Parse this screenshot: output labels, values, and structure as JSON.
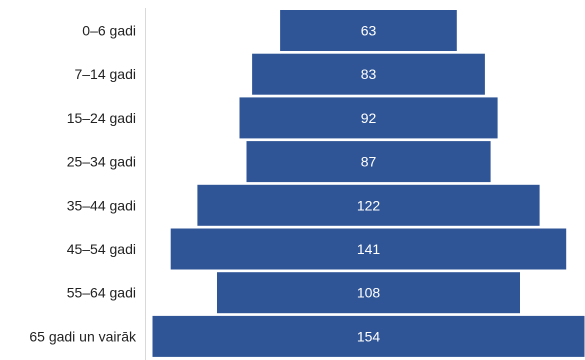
{
  "chart_data": {
    "type": "bar",
    "orientation": "horizontal-centered",
    "categories": [
      "0–6 gadi",
      "7–14 gadi",
      "15–24 gadi",
      "25–34 gadi",
      "35–44 gadi",
      "45–54 gadi",
      "55–64 gadi",
      "65 gadi un vairāk"
    ],
    "values": [
      63,
      83,
      92,
      87,
      122,
      141,
      108,
      154
    ],
    "value_labels": [
      "63",
      "83",
      "92",
      "87",
      "122",
      "141",
      "108",
      "154"
    ],
    "title": "",
    "xlabel": "",
    "ylabel": "",
    "grid": false,
    "legend": "none",
    "bar_color": "#2f5597",
    "axis_color": "#d9d9d9"
  }
}
